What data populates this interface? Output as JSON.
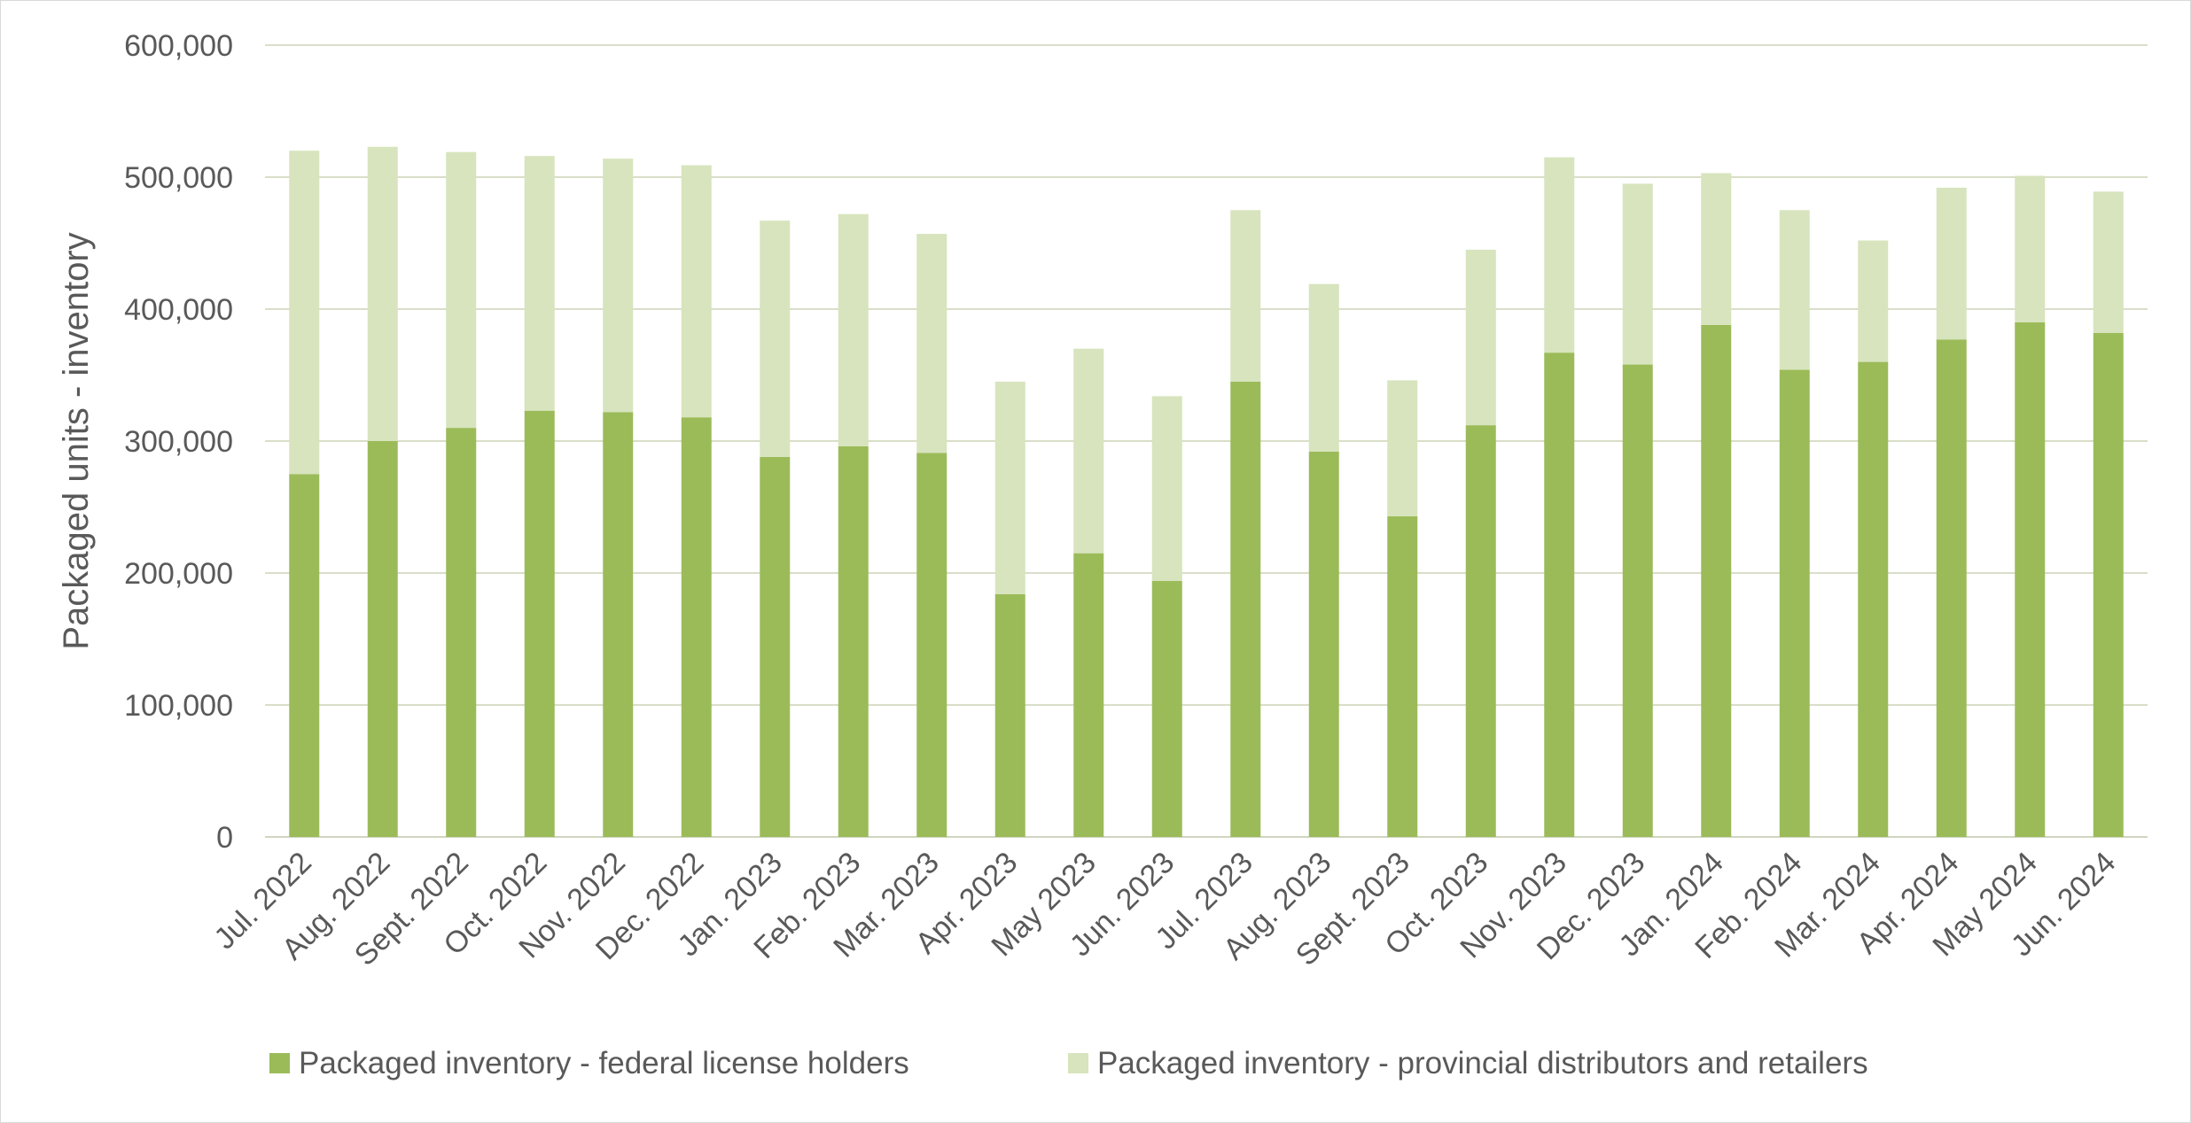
{
  "chart_data": {
    "type": "bar",
    "stacked": true,
    "title": "",
    "xlabel": "",
    "ylabel": "Packaged units - inventory",
    "ylim": [
      0,
      600000
    ],
    "yticks": [
      0,
      100000,
      200000,
      300000,
      400000,
      500000,
      600000
    ],
    "ytick_labels": [
      "0",
      "100,000",
      "200,000",
      "300,000",
      "400,000",
      "500,000",
      "600,000"
    ],
    "grid": true,
    "legend_position": "bottom",
    "categories": [
      "Jul. 2022",
      "Aug. 2022",
      "Sept. 2022",
      "Oct. 2022",
      "Nov. 2022",
      "Dec. 2022",
      "Jan. 2023",
      "Feb. 2023",
      "Mar. 2023",
      "Apr. 2023",
      "May 2023",
      "Jun. 2023",
      "Jul. 2023",
      "Aug. 2023",
      "Sept. 2023",
      "Oct. 2023",
      "Nov. 2023",
      "Dec. 2023",
      "Jan. 2024",
      "Feb. 2024",
      "Mar. 2024",
      "Apr. 2024",
      "May 2024",
      "Jun. 2024"
    ],
    "series": [
      {
        "name": "Packaged inventory - federal license holders",
        "color": "#9bbb59",
        "values": [
          275000,
          300000,
          310000,
          323000,
          322000,
          318000,
          288000,
          296000,
          291000,
          184000,
          215000,
          194000,
          345000,
          292000,
          243000,
          312000,
          367000,
          358000,
          388000,
          354000,
          360000,
          377000,
          390000,
          382000
        ]
      },
      {
        "name": "Packaged inventory - provincial distributors and retailers",
        "color": "#d7e4bd",
        "values": [
          245000,
          223000,
          209000,
          193000,
          192000,
          191000,
          179000,
          176000,
          166000,
          161000,
          155000,
          140000,
          130000,
          127000,
          103000,
          133000,
          148000,
          137000,
          115000,
          121000,
          92000,
          115000,
          111000,
          107000
        ]
      }
    ]
  }
}
